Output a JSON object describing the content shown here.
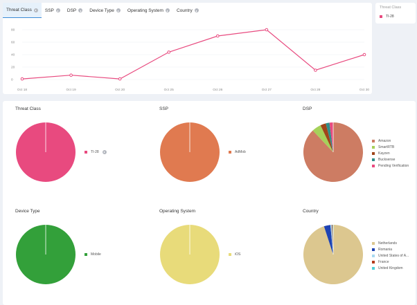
{
  "tabs": [
    {
      "label": "Threat Class",
      "active": true
    },
    {
      "label": "SSP",
      "active": false
    },
    {
      "label": "DSP",
      "active": false
    },
    {
      "label": "Device Type",
      "active": false
    },
    {
      "label": "Operating System",
      "active": false
    },
    {
      "label": "Country",
      "active": false
    }
  ],
  "legend_panel": {
    "title": "Threat Class",
    "item": "TI-28",
    "color": "#e84a7f"
  },
  "chart_data": [
    {
      "type": "line",
      "categories": [
        "Oct 18",
        "Oct 19",
        "Oct 20",
        "Oct 25",
        "Oct 26",
        "Oct 27",
        "Oct 28",
        "Oct 30"
      ],
      "series": [
        {
          "name": "TI-28",
          "values": [
            1,
            7,
            1,
            44,
            70,
            80,
            15,
            40
          ],
          "color": "#e84a7f"
        }
      ],
      "yticks": [
        "0",
        "20",
        "40",
        "60",
        "80"
      ],
      "ylim": [
        0,
        90
      ]
    },
    {
      "type": "pie",
      "title": "Threat Class",
      "slices": [
        {
          "label": "TI-28",
          "value": 100,
          "color": "#e84a7f"
        }
      ]
    },
    {
      "type": "pie",
      "title": "SSP",
      "slices": [
        {
          "label": "AdMob",
          "value": 100,
          "color": "#e07a50"
        }
      ]
    },
    {
      "type": "pie",
      "title": "DSP",
      "slices": [
        {
          "label": "Amazon",
          "value": 88,
          "color": "#cd7c63"
        },
        {
          "label": "SmartRTB",
          "value": 5,
          "color": "#a6d15a"
        },
        {
          "label": "Kayzen",
          "value": 3,
          "color": "#a0451a"
        },
        {
          "label": "Bucksense",
          "value": 2,
          "color": "#2f8f8a"
        },
        {
          "label": "Pending Verification",
          "value": 2,
          "color": "#e84a7f"
        }
      ]
    },
    {
      "type": "pie",
      "title": "Device Type",
      "slices": [
        {
          "label": "Mobile",
          "value": 100,
          "color": "#33a03a"
        }
      ]
    },
    {
      "type": "pie",
      "title": "Operating System",
      "slices": [
        {
          "label": "iOS",
          "value": 100,
          "color": "#e8db7a"
        }
      ]
    },
    {
      "type": "pie",
      "title": "Country",
      "slices": [
        {
          "label": "Netherlands",
          "value": 95,
          "color": "#dcc78f"
        },
        {
          "label": "Romania",
          "value": 3.5,
          "color": "#1e43b3"
        },
        {
          "label": "United States of A...",
          "value": 0.7,
          "color": "#a8d9f0"
        },
        {
          "label": "France",
          "value": 0.4,
          "color": "#b43a1a"
        },
        {
          "label": "United Kingdom",
          "value": 0.4,
          "color": "#4fd1d9"
        }
      ]
    }
  ]
}
